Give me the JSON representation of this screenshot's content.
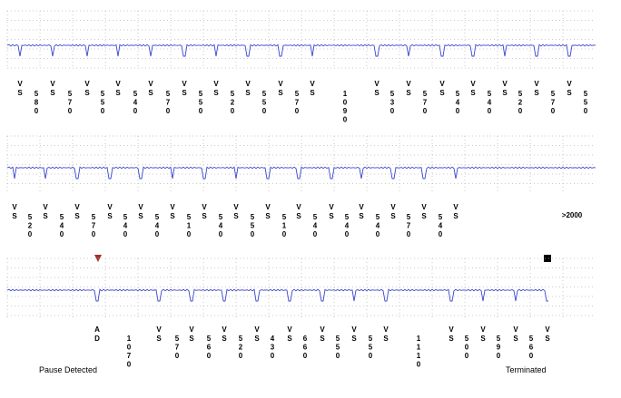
{
  "strips": [
    {
      "markers": [
        "VS",
        "VS",
        "VS",
        "VS",
        "VS",
        "VS",
        "VS",
        "VS",
        "VS",
        "VS",
        "VS",
        "VS",
        "VS",
        "VS",
        "VS",
        "VS",
        "VS"
      ],
      "intervals": [
        580,
        570,
        550,
        540,
        570,
        550,
        520,
        550,
        570,
        1090,
        530,
        570,
        540,
        540,
        520,
        570,
        550
      ]
    },
    {
      "markers": [
        "VS",
        "VS",
        "VS",
        "VS",
        "VS",
        "VS",
        "VS",
        "VS",
        "VS",
        "VS",
        "VS",
        "VS",
        "VS",
        "VS",
        "VS"
      ],
      "intervals": [
        520,
        540,
        570,
        540,
        540,
        510,
        540,
        550,
        510,
        540,
        540,
        540,
        570,
        540
      ],
      "note": ">2000"
    },
    {
      "markers": [
        "AD",
        "VS",
        "VS",
        "VS",
        "VS",
        "VS",
        "VS",
        "VS",
        "VS",
        "VS",
        "VS",
        "VS",
        "VS"
      ],
      "intervals": [
        1070,
        570,
        560,
        520,
        430,
        660,
        550,
        550,
        1110,
        500,
        590,
        560
      ]
    }
  ],
  "labels": {
    "start": "Pause Detected",
    "end": "Terminated"
  }
}
